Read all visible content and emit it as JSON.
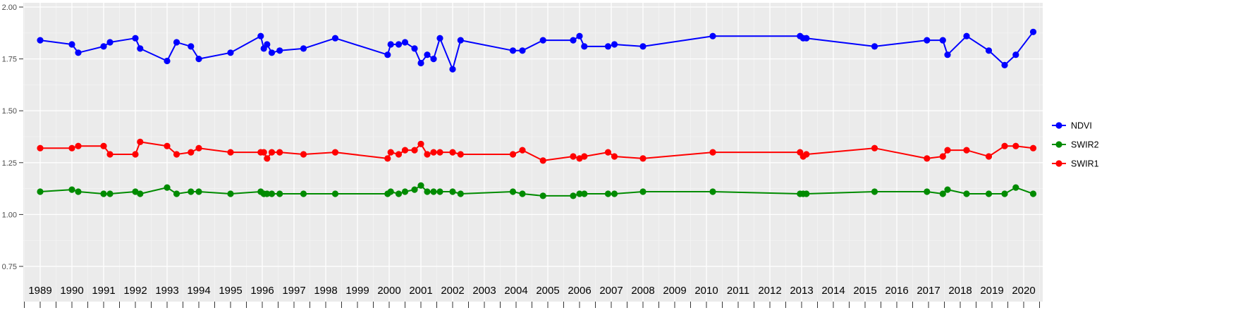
{
  "figure": {
    "background": "#FFFFFF",
    "panel_background": "#EBEBEB",
    "grid_major_color": "#FFFFFF",
    "grid_minor_color": "#F5F5F5",
    "axis_text_color": "#4D4D4D",
    "x_axis_text_color": "#000000",
    "tick_color": "#333333"
  },
  "chart_data": {
    "type": "line",
    "title": "",
    "xlabel": "",
    "ylabel": "",
    "ylim": [
      0.75,
      2.0
    ],
    "yticks": [
      "2.00",
      "1.75",
      "1.50",
      "1.25",
      "1.00",
      "0.75"
    ],
    "ytick_values": [
      2.0,
      1.75,
      1.5,
      1.25,
      1.0,
      0.75
    ],
    "xticks": [
      1989,
      1990,
      1991,
      1992,
      1993,
      1994,
      1995,
      1996,
      1997,
      1998,
      1999,
      2000,
      2001,
      2002,
      2003,
      2004,
      2005,
      2006,
      2007,
      2008,
      2009,
      2010,
      2011,
      2012,
      2013,
      2014,
      2015,
      2016,
      2017,
      2018,
      2019,
      2020
    ],
    "grid": true,
    "legend_position": "right",
    "x": [
      1989.0,
      1990.0,
      1990.2,
      1991.0,
      1991.2,
      1992.0,
      1992.15,
      1993.0,
      1993.3,
      1993.75,
      1994.0,
      1995.0,
      1995.95,
      1996.05,
      1996.15,
      1996.3,
      1996.55,
      1997.3,
      1998.3,
      1999.95,
      2000.05,
      2000.3,
      2000.5,
      2000.8,
      2001.0,
      2001.2,
      2001.4,
      2001.6,
      2002.0,
      2002.25,
      2003.9,
      2004.2,
      2004.85,
      2005.8,
      2006.0,
      2006.15,
      2006.9,
      2007.1,
      2008.0,
      2010.2,
      2012.95,
      2013.05,
      2013.15,
      2015.3,
      2016.95,
      2017.45,
      2017.6,
      2018.2,
      2018.9,
      2019.4,
      2019.75,
      2020.3
    ],
    "series": [
      {
        "name": "NDVI",
        "color": "#0000FF",
        "values": [
          1.84,
          1.82,
          1.78,
          1.81,
          1.83,
          1.85,
          1.8,
          1.74,
          1.83,
          1.81,
          1.75,
          1.78,
          1.86,
          1.8,
          1.82,
          1.78,
          1.79,
          1.8,
          1.85,
          1.77,
          1.82,
          1.82,
          1.83,
          1.8,
          1.73,
          1.77,
          1.75,
          1.85,
          1.7,
          1.84,
          1.79,
          1.79,
          1.84,
          1.84,
          1.86,
          1.81,
          1.81,
          1.82,
          1.81,
          1.86,
          1.86,
          1.85,
          1.85,
          1.81,
          1.84,
          1.84,
          1.77,
          1.86,
          1.79,
          1.72,
          1.77,
          1.88
        ]
      },
      {
        "name": "SWIR2",
        "color": "#008B00",
        "values": [
          1.11,
          1.12,
          1.11,
          1.1,
          1.1,
          1.11,
          1.1,
          1.13,
          1.1,
          1.11,
          1.11,
          1.1,
          1.11,
          1.1,
          1.1,
          1.1,
          1.1,
          1.1,
          1.1,
          1.1,
          1.11,
          1.1,
          1.11,
          1.12,
          1.14,
          1.11,
          1.11,
          1.11,
          1.11,
          1.1,
          1.11,
          1.1,
          1.09,
          1.09,
          1.1,
          1.1,
          1.1,
          1.1,
          1.11,
          1.11,
          1.1,
          1.1,
          1.1,
          1.11,
          1.11,
          1.1,
          1.12,
          1.1,
          1.1,
          1.1,
          1.13,
          1.1
        ]
      },
      {
        "name": "SWIR1",
        "color": "#FF0000",
        "values": [
          1.32,
          1.32,
          1.33,
          1.33,
          1.29,
          1.29,
          1.35,
          1.33,
          1.29,
          1.3,
          1.32,
          1.3,
          1.3,
          1.3,
          1.27,
          1.3,
          1.3,
          1.29,
          1.3,
          1.27,
          1.3,
          1.29,
          1.31,
          1.31,
          1.34,
          1.29,
          1.3,
          1.3,
          1.3,
          1.29,
          1.29,
          1.31,
          1.26,
          1.28,
          1.27,
          1.28,
          1.3,
          1.28,
          1.27,
          1.3,
          1.3,
          1.28,
          1.29,
          1.32,
          1.27,
          1.28,
          1.31,
          1.31,
          1.28,
          1.33,
          1.33,
          1.32
        ]
      }
    ],
    "legend_items": [
      "NDVI",
      "SWIR2",
      "SWIR1"
    ]
  }
}
